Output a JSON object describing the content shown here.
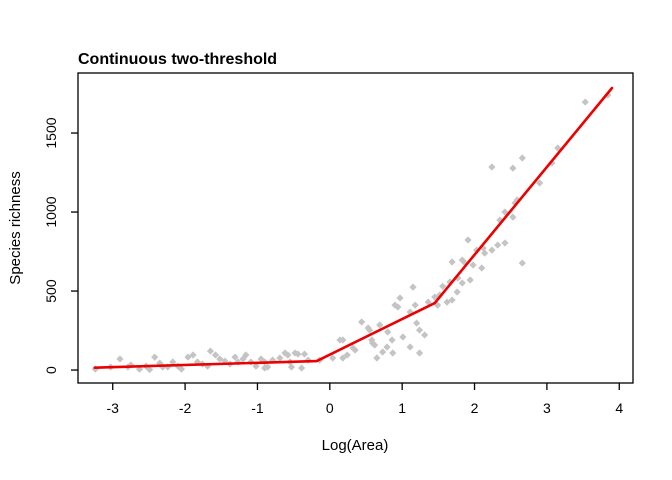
{
  "figure": {
    "background": "#ffffff"
  },
  "chart_data": {
    "type": "scatter",
    "title": "Continuous two-threshold",
    "xlabel": "Log(Area)",
    "ylabel": "Species richness",
    "x_ticks": [
      -3,
      -2,
      -1,
      0,
      1,
      2,
      3,
      4
    ],
    "y_ticks": [
      0,
      500,
      1000,
      1500
    ],
    "xlim": [
      -3.48,
      4.19
    ],
    "ylim": [
      -82,
      1880
    ],
    "grid": false,
    "legend": "none",
    "point_color": "#c4c4c4",
    "line_color": "#ec0000",
    "axis_color": "#000000",
    "series": [
      {
        "name": "observed-species-richness",
        "type": "scatter",
        "marker": "diamond",
        "points": [
          [
            -3.24,
            6
          ],
          [
            -3.03,
            19
          ],
          [
            -2.9,
            70
          ],
          [
            -2.79,
            19
          ],
          [
            -2.75,
            32
          ],
          [
            -2.63,
            6
          ],
          [
            -2.54,
            25
          ],
          [
            -2.49,
            3
          ],
          [
            -2.42,
            82
          ],
          [
            -2.35,
            44
          ],
          [
            -2.31,
            19
          ],
          [
            -2.24,
            19
          ],
          [
            -2.17,
            51
          ],
          [
            -2.1,
            25
          ],
          [
            -2.05,
            6
          ],
          [
            -1.96,
            82
          ],
          [
            -1.89,
            95
          ],
          [
            -1.83,
            51
          ],
          [
            -1.76,
            38
          ],
          [
            -1.69,
            25
          ],
          [
            -1.65,
            120
          ],
          [
            -1.58,
            95
          ],
          [
            -1.52,
            70
          ],
          [
            -1.45,
            57
          ],
          [
            -1.38,
            38
          ],
          [
            -1.31,
            82
          ],
          [
            -1.27,
            51
          ],
          [
            -1.2,
            70
          ],
          [
            -1.16,
            95
          ],
          [
            -1.09,
            51
          ],
          [
            -1.02,
            25
          ],
          [
            -0.95,
            70
          ],
          [
            -0.9,
            51
          ],
          [
            -0.9,
            13
          ],
          [
            -0.86,
            19
          ],
          [
            -0.79,
            63
          ],
          [
            -0.69,
            76
          ],
          [
            -0.62,
            108
          ],
          [
            -0.58,
            95
          ],
          [
            -0.55,
            51
          ],
          [
            -0.53,
            19
          ],
          [
            -0.48,
            108
          ],
          [
            -0.44,
            101
          ],
          [
            -0.39,
            13
          ],
          [
            -0.35,
            101
          ],
          [
            -0.3,
            63
          ],
          [
            -0.14,
            63
          ],
          [
            0.04,
            76
          ],
          [
            0.14,
            190
          ],
          [
            0.18,
            190
          ],
          [
            0.18,
            76
          ],
          [
            0.24,
            95
          ],
          [
            0.32,
            139
          ],
          [
            0.35,
            127
          ],
          [
            0.44,
            304
          ],
          [
            0.53,
            266
          ],
          [
            0.55,
            253
          ],
          [
            0.58,
            190
          ],
          [
            0.62,
            158
          ],
          [
            0.59,
            171
          ],
          [
            0.65,
            76
          ],
          [
            0.69,
            285
          ],
          [
            0.73,
            114
          ],
          [
            0.79,
            146
          ],
          [
            0.8,
            241
          ],
          [
            0.86,
            190
          ],
          [
            0.87,
            108
          ],
          [
            0.9,
            411
          ],
          [
            0.94,
            399
          ],
          [
            0.97,
            456
          ],
          [
            1.01,
            209
          ],
          [
            1.11,
            367
          ],
          [
            1.11,
            146
          ],
          [
            1.15,
            525
          ],
          [
            1.18,
            411
          ],
          [
            1.2,
            297
          ],
          [
            1.24,
            253
          ],
          [
            1.24,
            108
          ],
          [
            1.31,
            222
          ],
          [
            1.36,
            430
          ],
          [
            1.45,
            462
          ],
          [
            1.49,
            411
          ],
          [
            1.52,
            475
          ],
          [
            1.56,
            530
          ],
          [
            1.62,
            430
          ],
          [
            1.66,
            557
          ],
          [
            1.69,
            443
          ],
          [
            1.69,
            684
          ],
          [
            1.76,
            494
          ],
          [
            1.77,
            582
          ],
          [
            1.83,
            696
          ],
          [
            1.83,
            551
          ],
          [
            1.87,
            677
          ],
          [
            1.91,
            823
          ],
          [
            1.94,
            570
          ],
          [
            1.98,
            665
          ],
          [
            2.03,
            759
          ],
          [
            2.1,
            646
          ],
          [
            2.12,
            772
          ],
          [
            2.14,
            740
          ],
          [
            2.24,
            759
          ],
          [
            2.24,
            1285
          ],
          [
            2.32,
            791
          ],
          [
            2.35,
            949
          ],
          [
            2.42,
            1000
          ],
          [
            2.42,
            804
          ],
          [
            2.53,
            1278
          ],
          [
            2.53,
            968
          ],
          [
            2.56,
            1057
          ],
          [
            2.59,
            1076
          ],
          [
            2.66,
            1342
          ],
          [
            2.66,
            677
          ],
          [
            2.9,
            1184
          ],
          [
            3.07,
            1310
          ],
          [
            3.15,
            1405
          ],
          [
            3.53,
            1696
          ],
          [
            3.84,
            1740
          ]
        ]
      },
      {
        "name": "continuous-two-threshold-fit",
        "type": "line",
        "x": [
          -3.25,
          -0.18,
          1.45,
          3.9
        ],
        "y": [
          15,
          57,
          424,
          1785
        ]
      }
    ]
  }
}
